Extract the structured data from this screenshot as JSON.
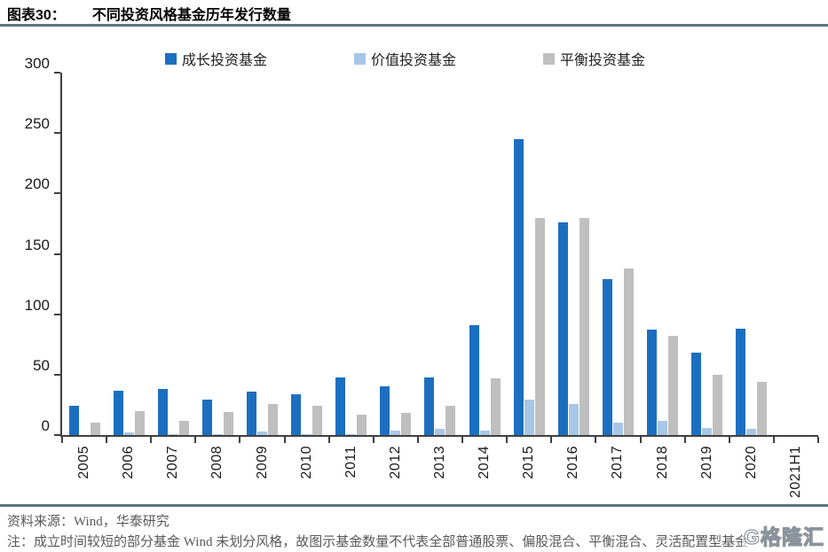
{
  "header": {
    "label": "图表30：",
    "title": "不同投资风格基金历年发行数量"
  },
  "chart_data": {
    "type": "bar",
    "title": "不同投资风格基金历年发行数量",
    "categories": [
      "2005",
      "2006",
      "2007",
      "2008",
      "2009",
      "2010",
      "2011",
      "2012",
      "2013",
      "2014",
      "2015",
      "2016",
      "2017",
      "2018",
      "2019",
      "2020",
      "2021H1"
    ],
    "series": [
      {
        "name": "成长投资基金",
        "color": "#1c6fc0",
        "values": [
          24,
          37,
          38,
          29,
          36,
          34,
          48,
          40,
          48,
          91,
          245,
          176,
          129,
          87,
          68,
          88,
          0
        ]
      },
      {
        "name": "价值投资基金",
        "color": "#a8c6e6",
        "values": [
          0,
          2,
          1,
          1,
          3,
          1,
          1,
          4,
          5,
          4,
          29,
          26,
          10,
          12,
          6,
          5,
          0
        ]
      },
      {
        "name": "平衡投资基金",
        "color": "#bfbfbf",
        "values": [
          10,
          20,
          12,
          19,
          26,
          24,
          17,
          18,
          24,
          47,
          180,
          180,
          138,
          82,
          50,
          44,
          0
        ]
      }
    ],
    "xlabel": "",
    "ylabel": "",
    "ylim": [
      0,
      300
    ],
    "yticks": [
      0,
      50,
      100,
      150,
      200,
      250,
      300
    ],
    "grid": false,
    "legend_position": "top"
  },
  "footer": {
    "source": "资料来源：Wind，华泰研究",
    "note": "注：成立时间较短的部分基金 Wind 未划分风格，故图示基金数量不代表全部普通股票、偏股混合、平衡混合、灵活配置型基金",
    "watermark": "G格隆汇"
  },
  "colors": {
    "rule": "#5e7380",
    "axis": "#404040",
    "footer_text": "#595959"
  }
}
